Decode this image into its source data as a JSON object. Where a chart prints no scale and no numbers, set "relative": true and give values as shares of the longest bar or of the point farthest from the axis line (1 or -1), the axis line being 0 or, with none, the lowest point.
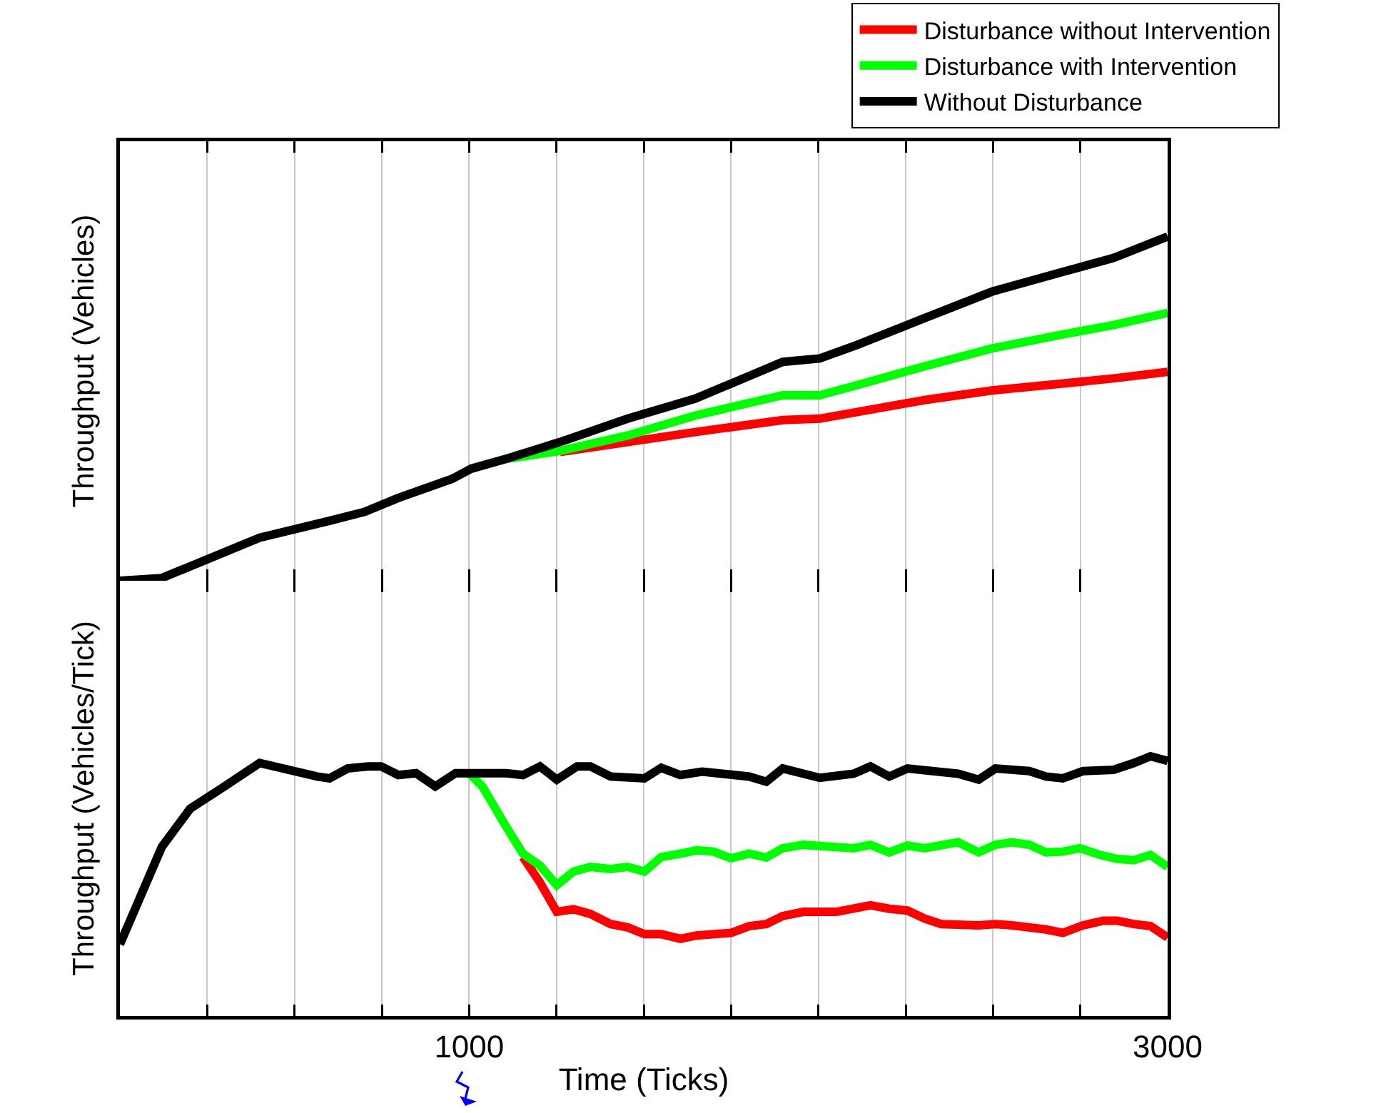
{
  "chart_data": [
    {
      "type": "line",
      "ylabel": "Throughput (Vehicles)",
      "relative": true,
      "xlim": [
        0,
        3000
      ],
      "xticks": [
        {
          "value": 0,
          "label": null
        },
        {
          "value": 250,
          "label": null
        },
        {
          "value": 500,
          "label": null
        },
        {
          "value": 750,
          "label": null
        },
        {
          "value": 1000,
          "label": null
        },
        {
          "value": 1250,
          "label": null
        },
        {
          "value": 1500,
          "label": null
        },
        {
          "value": 1750,
          "label": null
        },
        {
          "value": 2000,
          "label": null
        },
        {
          "value": 2250,
          "label": null
        },
        {
          "value": 2500,
          "label": null
        },
        {
          "value": 2750,
          "label": null
        },
        {
          "value": 3000,
          "label": null
        }
      ],
      "tick_labels": false,
      "grid": "x",
      "legend": "top right",
      "line_style": "solid",
      "marker": "none",
      "series": [
        {
          "name": "Disturbance without Intervention",
          "color": "#ff0000",
          "x": [
            1260,
            1454,
            1647,
            1898,
            2004,
            2304,
            2497,
            2691,
            2845,
            3000
          ],
          "values": [
            0.374,
            0.403,
            0.432,
            0.467,
            0.471,
            0.525,
            0.553,
            0.572,
            0.588,
            0.607
          ]
        },
        {
          "name": "Disturbance with Intervention",
          "color": "#00ff00",
          "x": [
            1000,
            1105,
            1260,
            1454,
            1647,
            1898,
            2004,
            2110,
            2304,
            2497,
            2691,
            2845,
            3000
          ],
          "values": [
            0.325,
            0.354,
            0.377,
            0.422,
            0.48,
            0.539,
            0.539,
            0.568,
            0.623,
            0.675,
            0.714,
            0.743,
            0.778
          ]
        },
        {
          "name": "Without Disturbance",
          "color": "#000000",
          "x": [
            0,
            120,
            400,
            603,
            700,
            796,
            951,
            1005,
            1105,
            1260,
            1454,
            1647,
            1898,
            2004,
            2110,
            2304,
            2497,
            2691,
            2845,
            3000
          ],
          "values": [
            0,
            0.008,
            0.125,
            0.175,
            0.2,
            0.24,
            0.296,
            0.325,
            0.354,
            0.403,
            0.471,
            0.529,
            0.636,
            0.646,
            0.685,
            0.763,
            0.84,
            0.895,
            0.938,
            1.0
          ]
        }
      ]
    },
    {
      "type": "line",
      "xlabel": "Time (Ticks)",
      "ylabel": "Throughput (Vehicles/Tick)",
      "relative": true,
      "xlim": [
        0,
        3000
      ],
      "xticks": [
        {
          "value": 0,
          "label": null
        },
        {
          "value": 250,
          "label": null
        },
        {
          "value": 500,
          "label": null
        },
        {
          "value": 750,
          "label": null
        },
        1000,
        {
          "value": 1250,
          "label": null
        },
        {
          "value": 1500,
          "label": null
        },
        {
          "value": 1750,
          "label": null
        },
        {
          "value": 2000,
          "label": null
        },
        {
          "value": 2250,
          "label": null
        },
        {
          "value": 2500,
          "label": null
        },
        {
          "value": 2750,
          "label": null
        },
        3000
      ],
      "tick_labels": "x",
      "grid": "x",
      "legend": false,
      "line_style": "solid",
      "marker": "none",
      "series": [
        {
          "color": "#ff0000",
          "x": [
            1154,
            1203,
            1251,
            1299,
            1347,
            1405,
            1454,
            1502,
            1550,
            1605,
            1651,
            1750,
            1802,
            1851,
            1898,
            1957,
            2052,
            2149,
            2203,
            2255,
            2304,
            2352,
            2459,
            2507,
            2555,
            2652,
            2700,
            2758,
            2816,
            2855,
            2903,
            2951,
            3000
          ],
          "values": [
            0.612,
            0.514,
            0.401,
            0.411,
            0.393,
            0.354,
            0.341,
            0.315,
            0.315,
            0.297,
            0.31,
            0.32,
            0.346,
            0.354,
            0.385,
            0.401,
            0.401,
            0.426,
            0.413,
            0.406,
            0.375,
            0.354,
            0.349,
            0.354,
            0.349,
            0.333,
            0.32,
            0.349,
            0.367,
            0.367,
            0.354,
            0.346,
            0.302
          ]
        },
        {
          "color": "#00ff00",
          "x": [
            1000,
            1038,
            1106,
            1154,
            1203,
            1251,
            1299,
            1347,
            1405,
            1454,
            1502,
            1550,
            1605,
            1651,
            1700,
            1750,
            1802,
            1851,
            1898,
            1957,
            2101,
            2149,
            2203,
            2255,
            2304,
            2400,
            2459,
            2507,
            2555,
            2604,
            2652,
            2700,
            2749,
            2807,
            2855,
            2903,
            2951,
            3000
          ],
          "values": [
            0.935,
            0.884,
            0.729,
            0.625,
            0.579,
            0.504,
            0.556,
            0.574,
            0.566,
            0.574,
            0.556,
            0.612,
            0.625,
            0.638,
            0.633,
            0.607,
            0.625,
            0.61,
            0.646,
            0.659,
            0.646,
            0.659,
            0.63,
            0.656,
            0.646,
            0.669,
            0.63,
            0.659,
            0.669,
            0.659,
            0.63,
            0.633,
            0.646,
            0.62,
            0.605,
            0.6,
            0.62,
            0.574
          ]
        },
        {
          "color": "#000000",
          "x": [
            0,
            120,
            201,
            294,
            400,
            565,
            600,
            652,
            710,
            748,
            797,
            848,
            903,
            961,
            1106,
            1154,
            1203,
            1251,
            1309,
            1347,
            1405,
            1502,
            1550,
            1605,
            1667,
            1802,
            1851,
            1898,
            2004,
            2101,
            2149,
            2203,
            2255,
            2400,
            2459,
            2507,
            2604,
            2652,
            2700,
            2758,
            2845,
            2903,
            2951,
            3000
          ],
          "values": [
            0.276,
            0.651,
            0.798,
            0.879,
            0.974,
            0.922,
            0.915,
            0.953,
            0.961,
            0.961,
            0.928,
            0.935,
            0.884,
            0.935,
            0.935,
            0.928,
            0.961,
            0.91,
            0.961,
            0.961,
            0.922,
            0.915,
            0.956,
            0.928,
            0.941,
            0.922,
            0.902,
            0.953,
            0.917,
            0.933,
            0.961,
            0.922,
            0.953,
            0.933,
            0.91,
            0.953,
            0.943,
            0.922,
            0.915,
            0.943,
            0.948,
            0.974,
            1.0,
            0.982
          ]
        }
      ]
    }
  ]
}
